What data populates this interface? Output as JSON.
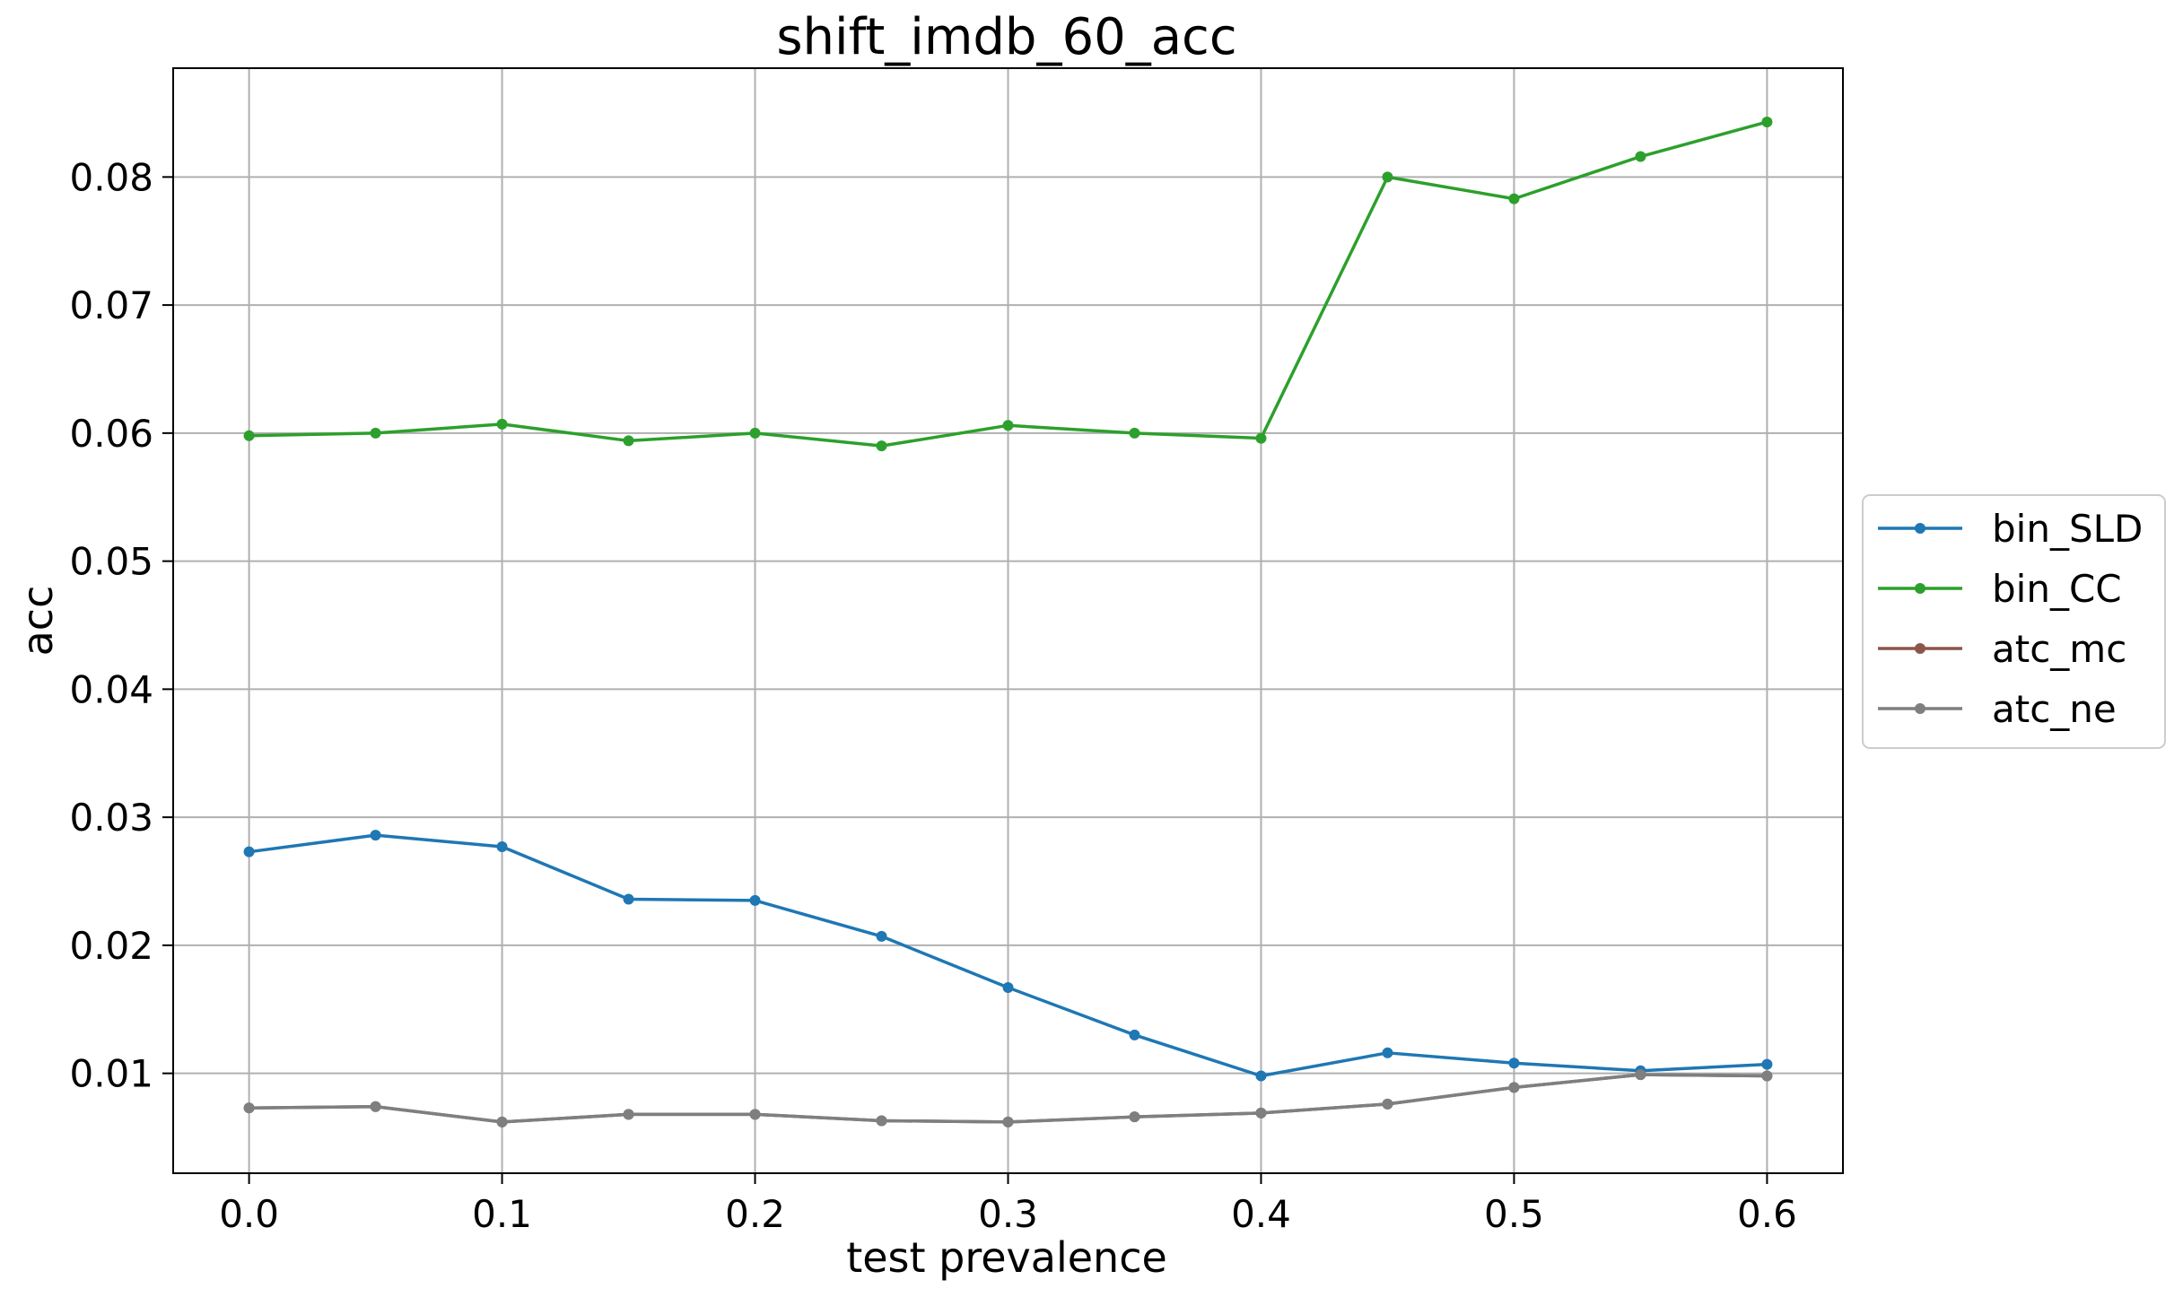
{
  "chart_data": {
    "type": "line",
    "title": "shift_imdb_60_acc",
    "xlabel": "test prevalence",
    "ylabel": "acc",
    "x": [
      0.0,
      0.05,
      0.1,
      0.15,
      0.2,
      0.25,
      0.3,
      0.35,
      0.4,
      0.45,
      0.5,
      0.55,
      0.6
    ],
    "xlim": [
      -0.03,
      0.63
    ],
    "ylim": [
      0.0022,
      0.0885
    ],
    "xticks": [
      0.0,
      0.1,
      0.2,
      0.3,
      0.4,
      0.5,
      0.6
    ],
    "xtick_labels": [
      "0.0",
      "0.1",
      "0.2",
      "0.3",
      "0.4",
      "0.5",
      "0.6"
    ],
    "yticks": [
      0.01,
      0.02,
      0.03,
      0.04,
      0.05,
      0.06,
      0.07,
      0.08
    ],
    "ytick_labels": [
      "0.01",
      "0.02",
      "0.03",
      "0.04",
      "0.05",
      "0.06",
      "0.07",
      "0.08"
    ],
    "grid": true,
    "legend_position": "right, outside plot, vertically centered",
    "series": [
      {
        "name": "bin_SLD",
        "color": "#1f77b4",
        "values": [
          0.0273,
          0.0286,
          0.0277,
          0.0236,
          0.0235,
          0.0207,
          0.0167,
          0.013,
          0.0098,
          0.0116,
          0.0108,
          0.0102,
          0.0107
        ]
      },
      {
        "name": "bin_CC",
        "color": "#2ca02c",
        "values": [
          0.0598,
          0.06,
          0.0607,
          0.0594,
          0.06,
          0.059,
          0.0606,
          0.06,
          0.0596,
          0.08,
          0.0783,
          0.0816,
          0.0843
        ]
      },
      {
        "name": "atc_mc",
        "color": "#8c564b",
        "values": [
          0.0073,
          0.0074,
          0.0062,
          0.0068,
          0.0068,
          0.0063,
          0.0062,
          0.0066,
          0.0069,
          0.0076,
          0.0089,
          0.0099,
          0.0098
        ]
      },
      {
        "name": "atc_ne",
        "color": "#7f7f7f",
        "values": [
          0.0073,
          0.0074,
          0.0062,
          0.0068,
          0.0068,
          0.0063,
          0.0062,
          0.0066,
          0.0069,
          0.0076,
          0.0089,
          0.0099,
          0.0098
        ]
      }
    ]
  }
}
